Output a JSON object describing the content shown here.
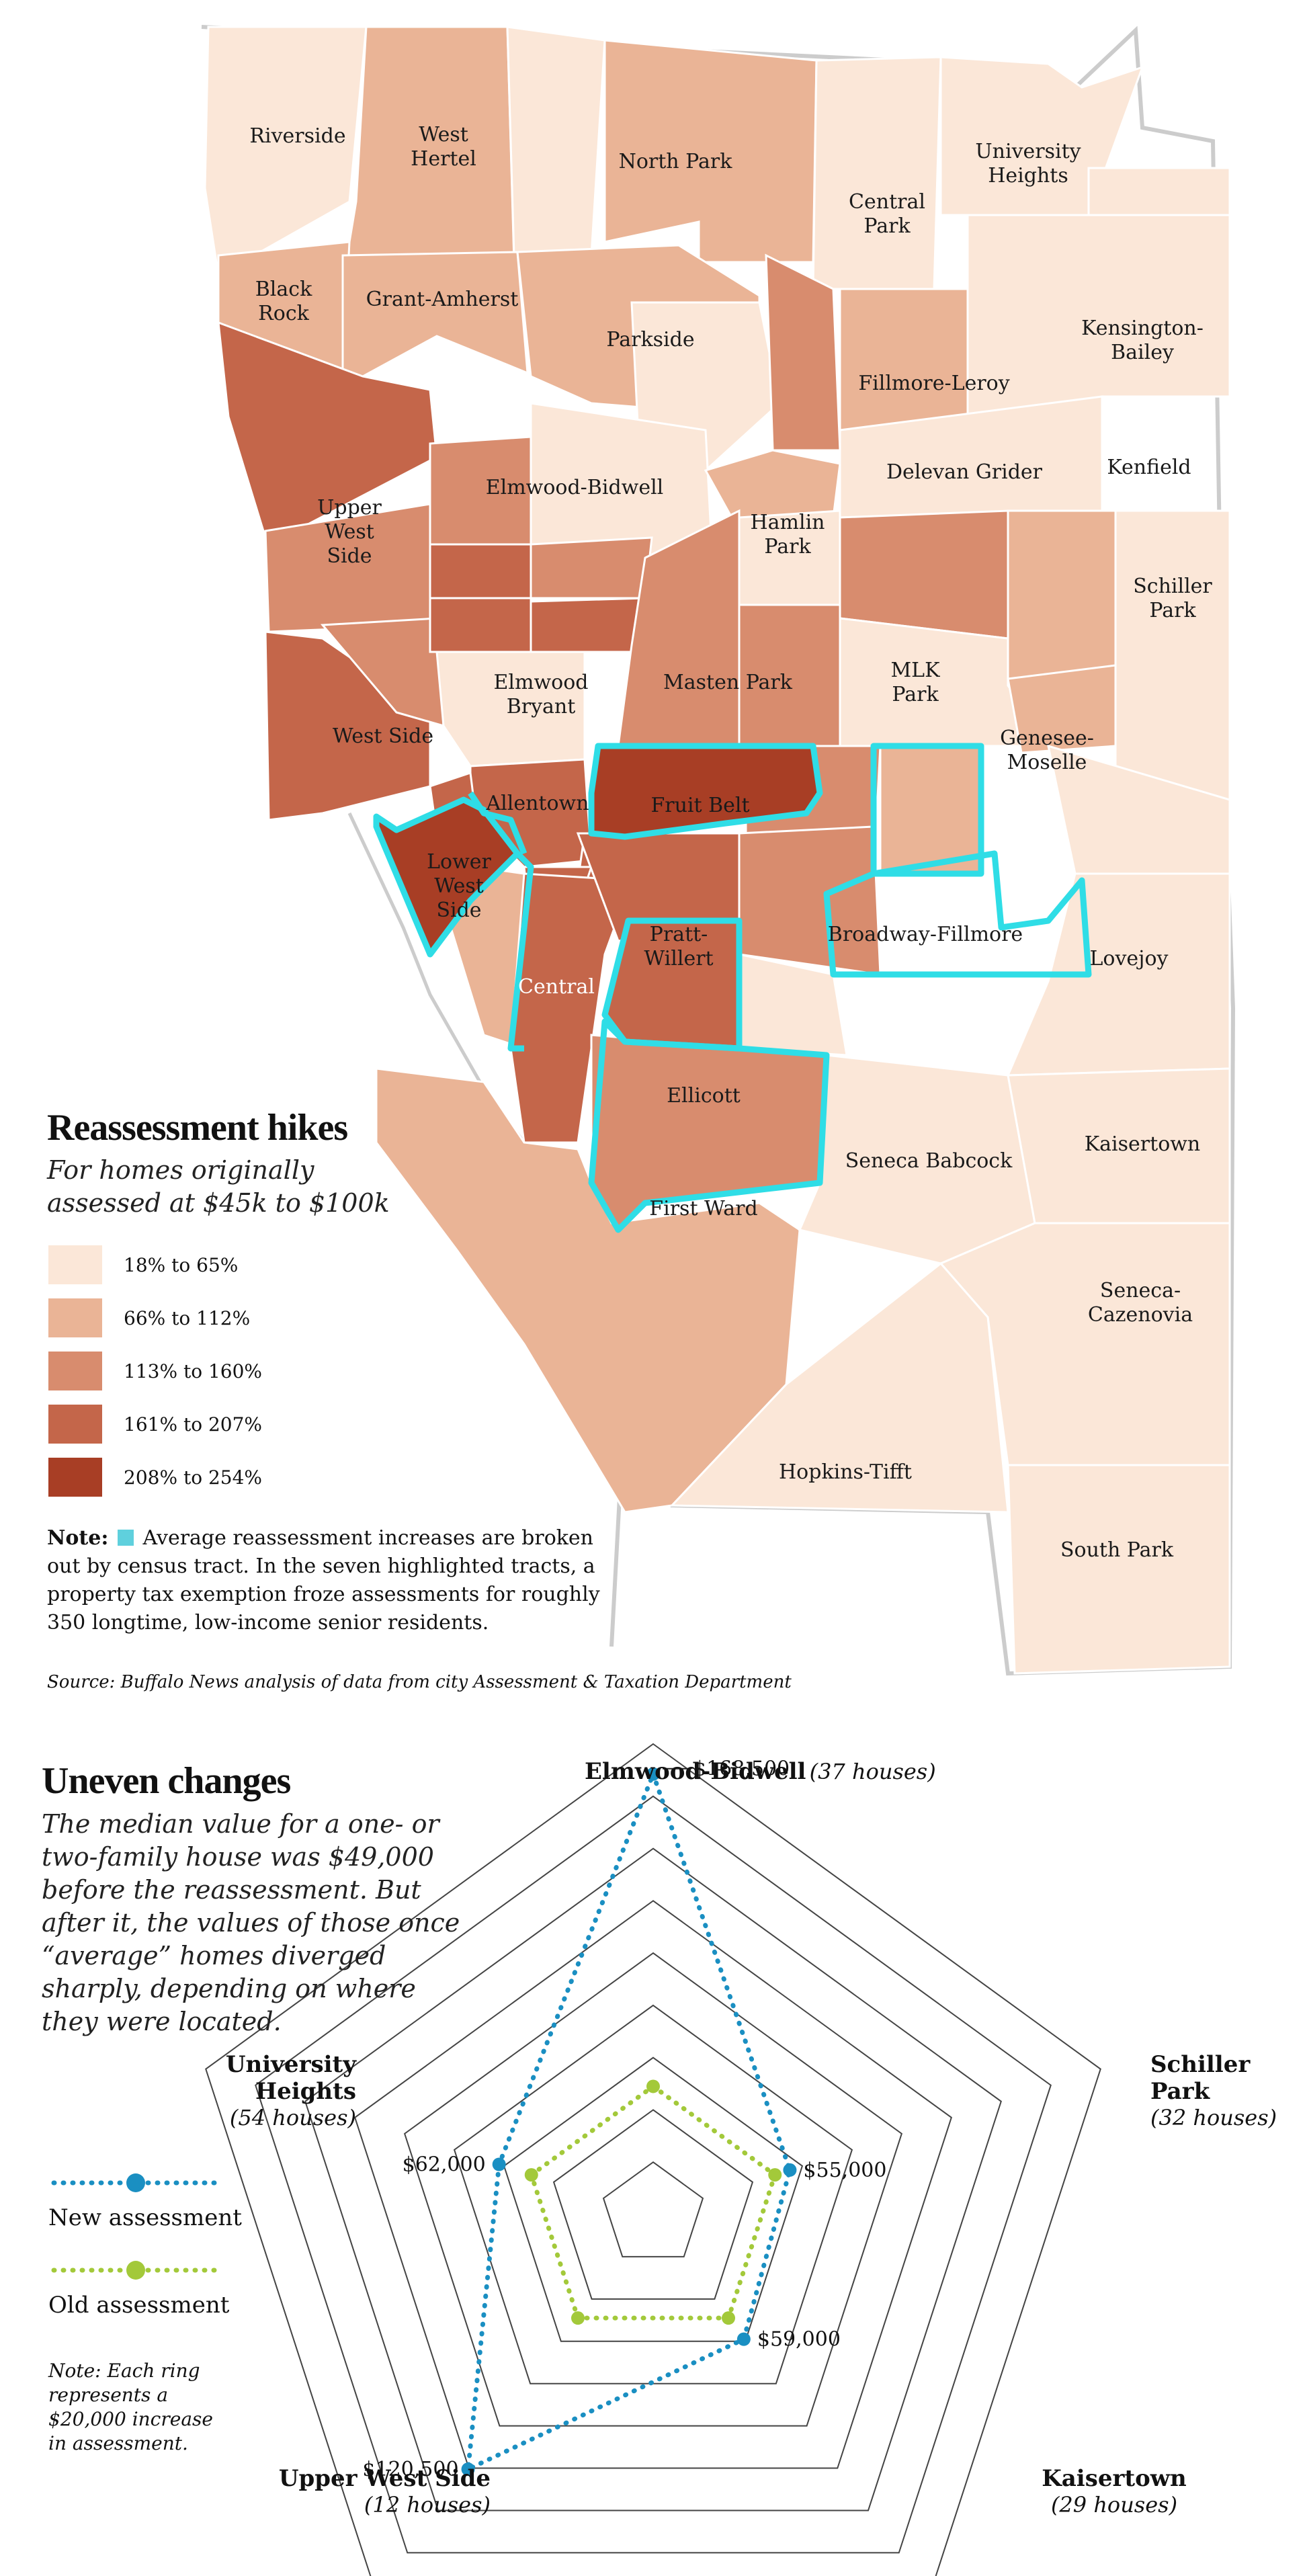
{
  "colors": {
    "c1": "#fbe7d8",
    "c2": "#eab496",
    "c3": "#d88c6e",
    "c4": "#c4664a",
    "c5": "#a83e25",
    "highlight": "#2fdde6",
    "new_series": "#1a8fc2",
    "old_series": "#a3c93a",
    "grid": "#444444",
    "boundary": "#c8c8c8"
  },
  "map": {
    "title": "Reassessment hikes",
    "subtitle": "For homes originally assessed at $45k to $100k",
    "legend": [
      {
        "label": "18% to 65%",
        "color": "#fbe7d8"
      },
      {
        "label": "66% to 112%",
        "color": "#eab496"
      },
      {
        "label": "113% to 160%",
        "color": "#d88c6e"
      },
      {
        "label": "161% to 207%",
        "color": "#c4664a"
      },
      {
        "label": "208% to 254%",
        "color": "#a83e25"
      }
    ],
    "note_label": "Note:",
    "note_text": "Average reassessment increases are broken out by census tract. In the seven highlighted tracts, a property tax exemption froze assessments for roughly 350 longtime, low-income senior residents.",
    "source": "Source: Buffalo News analysis of data from city Assessment & Taxation Department",
    "neighborhoods": {
      "riverside": "Riverside",
      "west_hertel_1": "West",
      "west_hertel_2": "Hertel",
      "north_park": "North Park",
      "university_heights_1": "University",
      "university_heights_2": "Heights",
      "central_park_1": "Central",
      "central_park_2": "Park",
      "black_rock_1": "Black",
      "black_rock_2": "Rock",
      "grant_amherst": "Grant-Amherst",
      "parkside": "Parkside",
      "kensington_1": "Kensington-",
      "kensington_2": "Bailey",
      "fillmore_leroy": "Fillmore-Leroy",
      "elmwood_bidwell": "Elmwood-Bidwell",
      "delevan_grider": "Delevan Grider",
      "kenfield": "Kenfield",
      "upper_west_side_1": "Upper",
      "upper_west_side_2": "West",
      "upper_west_side_3": "Side",
      "hamlin_park_1": "Hamlin",
      "hamlin_park_2": "Park",
      "schiller_park_1": "Schiller",
      "schiller_park_2": "Park",
      "elmwood_bryant_1": "Elmwood",
      "elmwood_bryant_2": "Bryant",
      "masten_park": "Masten Park",
      "mlk_park_1": "MLK",
      "mlk_park_2": "Park",
      "west_side": "West Side",
      "genesee_moselle_1": "Genesee-",
      "genesee_moselle_2": "Moselle",
      "allentown": "Allentown",
      "fruit_belt": "Fruit Belt",
      "lower_west_side_1": "Lower",
      "lower_west_side_2": "West",
      "lower_west_side_3": "Side",
      "pratt_willert_1": "Pratt-",
      "pratt_willert_2": "Willert",
      "broadway_fillmore": "Broadway-Fillmore",
      "lovejoy": "Lovejoy",
      "central": "Central",
      "ellicott": "Ellicott",
      "kaisertown": "Kaisertown",
      "seneca_babcock": "Seneca Babcock",
      "first_ward": "First Ward",
      "seneca_cazenovia_1": "Seneca-",
      "seneca_cazenovia_2": "Cazenovia",
      "hopkins_tifft": "Hopkins-Tifft",
      "south_park": "South Park"
    }
  },
  "radar": {
    "title": "Uneven changes",
    "description": "The median value for a one- or two-family house was $49,000 before the reassessment. But after it, the values of those once “average” homes diverged sharply, depending on where they were located.",
    "legend_new": "New assessment",
    "legend_old": "Old assessment",
    "ring_note": "Note: Each ring represents a $20,000 increase in assessment.",
    "axes": [
      {
        "name": "Elmwood-Bidwell",
        "houses": "(37 houses)",
        "value_label": "$168,500"
      },
      {
        "name": "Schiller Park",
        "name_line1": "Schiller",
        "name_line2": "Park",
        "houses": "(32 houses)",
        "value_label": "$55,000"
      },
      {
        "name": "Kaisertown",
        "houses": "(29 houses)",
        "value_label": "$59,000"
      },
      {
        "name": "Upper West Side",
        "houses": "(12 houses)",
        "value_label": "$120,500"
      },
      {
        "name": "University Heights",
        "name_line1": "University",
        "name_line2": "Heights",
        "houses": "(54 houses)",
        "value_label": "$62,000"
      }
    ]
  },
  "chart_data": {
    "type": "radar",
    "title": "Uneven changes",
    "categories": [
      "Elmwood-Bidwell",
      "Schiller Park",
      "Kaisertown",
      "Upper West Side",
      "University Heights"
    ],
    "series": [
      {
        "name": "New assessment",
        "values": [
          168500,
          55000,
          59000,
          120500,
          62000
        ]
      },
      {
        "name": "Old assessment",
        "values": [
          49000,
          49000,
          49000,
          49000,
          49000
        ]
      }
    ],
    "ring_step": 20000,
    "rings": 9
  }
}
